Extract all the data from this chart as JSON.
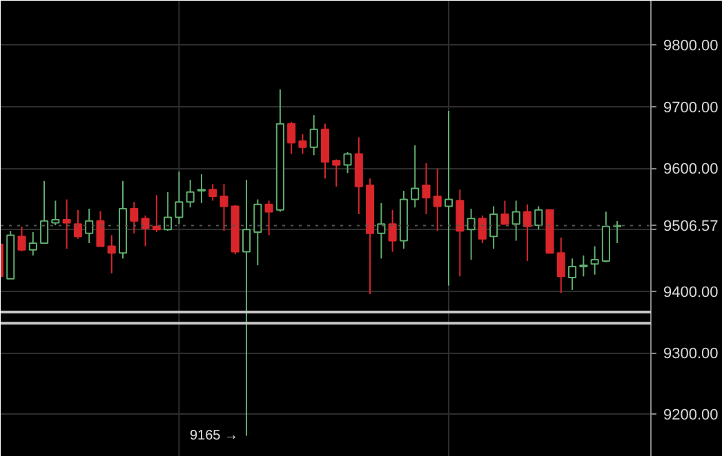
{
  "chart_data": {
    "type": "candlestick",
    "categories": [
      null,
      null,
      null,
      null,
      null,
      null,
      null,
      null,
      null,
      null,
      null,
      null,
      null,
      null,
      null,
      null,
      null,
      null,
      null,
      null,
      null,
      null,
      null,
      null,
      null,
      null,
      null,
      null,
      null,
      null,
      null,
      null,
      null,
      null,
      null,
      null,
      null,
      null,
      null,
      null,
      null,
      null,
      null,
      null,
      null,
      null,
      null,
      null,
      null,
      null,
      null,
      null,
      null,
      null,
      null,
      null
    ],
    "ohlc": [
      [
        9476,
        9478,
        9422,
        9424
      ],
      [
        9420,
        9498,
        9420,
        9491
      ],
      [
        9489,
        9505,
        9465,
        9467
      ],
      [
        9467,
        9496,
        9458,
        9478
      ],
      [
        9478,
        9579,
        9478,
        9514
      ],
      [
        9511,
        9547,
        9507,
        9516
      ],
      [
        9516,
        9549,
        9469,
        9511
      ],
      [
        9509,
        9532,
        9485,
        9489
      ],
      [
        9494,
        9534,
        9478,
        9514
      ],
      [
        9514,
        9530,
        9473,
        9473
      ],
      [
        9473,
        9491,
        9429,
        9462
      ],
      [
        9462,
        9579,
        9453,
        9534
      ],
      [
        9534,
        9545,
        9494,
        9514
      ],
      [
        9518,
        9523,
        9473,
        9502
      ],
      [
        9505,
        9556,
        9496,
        9500
      ],
      [
        9500,
        9561,
        9498,
        9520
      ],
      [
        9520,
        9594,
        9509,
        9545
      ],
      [
        9545,
        9581,
        9536,
        9561
      ],
      [
        9563,
        9590,
        9543,
        9565
      ],
      [
        9565,
        9574,
        9547,
        9554
      ],
      [
        9554,
        9574,
        9498,
        9538
      ],
      [
        9538,
        9540,
        9460,
        9464
      ],
      [
        9464,
        9581,
        9165,
        9500
      ],
      [
        9496,
        9549,
        9442,
        9541
      ],
      [
        9541,
        9547,
        9491,
        9529
      ],
      [
        9532,
        9728,
        9529,
        9672
      ],
      [
        9672,
        9675,
        9623,
        9641
      ],
      [
        9644,
        9655,
        9623,
        9634
      ],
      [
        9634,
        9686,
        9621,
        9663
      ],
      [
        9663,
        9672,
        9583,
        9610
      ],
      [
        9612,
        9614,
        9570,
        9605
      ],
      [
        9605,
        9626,
        9592,
        9623
      ],
      [
        9623,
        9650,
        9525,
        9570
      ],
      [
        9572,
        9583,
        9395,
        9494
      ],
      [
        9494,
        9543,
        9453,
        9509
      ],
      [
        9509,
        9532,
        9464,
        9482
      ],
      [
        9482,
        9563,
        9469,
        9549
      ],
      [
        9549,
        9637,
        9536,
        9567
      ],
      [
        9572,
        9608,
        9525,
        9552
      ],
      [
        9554,
        9599,
        9498,
        9538
      ],
      [
        9538,
        9693,
        9409,
        9549
      ],
      [
        9547,
        9565,
        9424,
        9498
      ],
      [
        9500,
        9534,
        9451,
        9518
      ],
      [
        9518,
        9523,
        9478,
        9485
      ],
      [
        9489,
        9538,
        9469,
        9525
      ],
      [
        9525,
        9547,
        9509,
        9509
      ],
      [
        9509,
        9547,
        9482,
        9529
      ],
      [
        9529,
        9541,
        9449,
        9505
      ],
      [
        9507,
        9538,
        9500,
        9532
      ],
      [
        9532,
        9532,
        9462,
        9462
      ],
      [
        9462,
        9487,
        9397,
        9424
      ],
      [
        9422,
        9453,
        9402,
        9440
      ],
      [
        9440,
        9458,
        9424,
        9442
      ],
      [
        9444,
        9473,
        9427,
        9451
      ],
      [
        9449,
        9529,
        9447,
        9505
      ],
      [
        9505,
        9514,
        9478,
        9506.57
      ]
    ],
    "colors": [
      "#d9262b",
      "#5fae6e",
      "#d9262b",
      "#5fae6e",
      "#5fae6e",
      "#5fae6e",
      "#d9262b",
      "#d9262b",
      "#5fae6e",
      "#d9262b",
      "#d9262b",
      "#5fae6e",
      "#d9262b",
      "#d9262b",
      "#d9262b",
      "#5fae6e",
      "#5fae6e",
      "#5fae6e",
      "#5fae6e",
      "#d9262b",
      "#d9262b",
      "#d9262b",
      "#5fae6e",
      "#5fae6e",
      "#d9262b",
      "#5fae6e",
      "#d9262b",
      "#d9262b",
      "#5fae6e",
      "#d9262b",
      "#d9262b",
      "#5fae6e",
      "#d9262b",
      "#d9262b",
      "#5fae6e",
      "#d9262b",
      "#5fae6e",
      "#5fae6e",
      "#d9262b",
      "#d9262b",
      "#5fae6e",
      "#d9262b",
      "#5fae6e",
      "#d9262b",
      "#5fae6e",
      "#d9262b",
      "#5fae6e",
      "#d9262b",
      "#5fae6e",
      "#d9262b",
      "#d9262b",
      "#5fae6e",
      "#5fae6e",
      "#5fae6e",
      "#5fae6e",
      "#5fae6e"
    ],
    "ylim": [
      9131,
      9872
    ],
    "yticks": [
      {
        "value": 9200,
        "label": "9200.00"
      },
      {
        "value": 9300,
        "label": "9300.00"
      },
      {
        "value": 9400,
        "label": "9400.00"
      },
      {
        "value": 9500,
        "label": null
      },
      {
        "value": 9600,
        "label": "9600.00"
      },
      {
        "value": 9700,
        "label": "9700.00"
      },
      {
        "value": 9800,
        "label": "9800.00"
      }
    ],
    "grid": "y",
    "tick_labels": "y",
    "ref_lines": [
      {
        "axis": "y",
        "value": 9506.57,
        "label": "9506.57",
        "color": "#555555",
        "line_style": "dotted"
      },
      {
        "axis": "y",
        "value": 9366,
        "label": null,
        "color": "#c8c8c8"
      },
      {
        "axis": "y",
        "value": 9348,
        "label": null,
        "color": "#c8c8c8"
      }
    ],
    "annotations": [
      "9165 →"
    ]
  }
}
